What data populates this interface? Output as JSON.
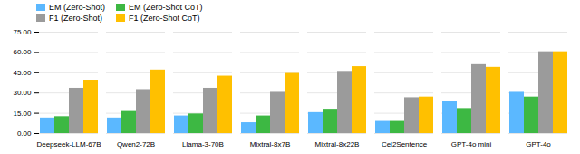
{
  "chart_data": {
    "type": "bar",
    "categories": [
      "Deepseek-LLM-67B",
      "Qwen2-72B",
      "Llama-3-70B",
      "Mixtral-8x7B",
      "Mixtral-8x22B",
      "Cel2Sentence",
      "GPT-4o mini",
      "GPT-4o"
    ],
    "series": [
      {
        "name": "EM (Zero-Shot)",
        "color": "#5BB8FF",
        "values": [
          11.5,
          11.5,
          13.0,
          8.0,
          15.5,
          9.0,
          24.0,
          30.5
        ]
      },
      {
        "name": "EM (Zero-Shot CoT)",
        "color": "#3DB843",
        "values": [
          12.5,
          17.0,
          14.5,
          13.0,
          18.0,
          9.0,
          18.5,
          27.0
        ]
      },
      {
        "name": "F1 (Zero-Shot)",
        "color": "#9B9B9B",
        "values": [
          33.5,
          32.5,
          33.5,
          30.5,
          46.0,
          26.5,
          51.0,
          60.5
        ]
      },
      {
        "name": "F1 (Zero-Shot CoT)",
        "color": "#FFC000",
        "values": [
          39.5,
          47.0,
          42.5,
          44.5,
          49.5,
          27.0,
          49.0,
          60.5
        ]
      }
    ],
    "ylim": [
      0,
      75
    ],
    "yticks": [
      {
        "value": 0,
        "label": "0.00"
      },
      {
        "value": 15,
        "label": "15.00"
      },
      {
        "value": 30,
        "label": "30.00"
      },
      {
        "value": 45,
        "label": "45.00"
      },
      {
        "value": 60,
        "label": "60.00"
      },
      {
        "value": 75,
        "label": "75.00"
      }
    ],
    "grid": true,
    "legend": "upper left"
  }
}
